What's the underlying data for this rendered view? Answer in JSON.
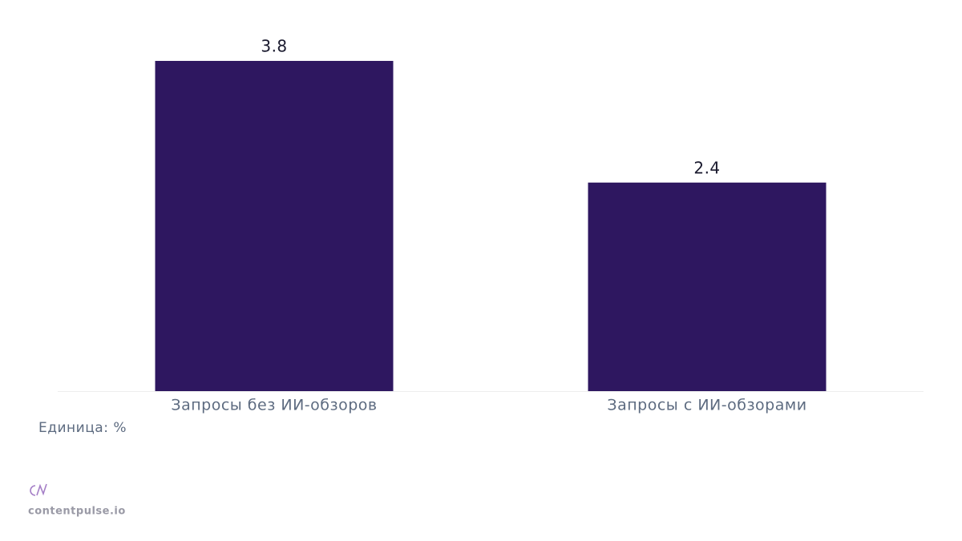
{
  "chart_data": {
    "type": "bar",
    "categories": [
      "Запросы без ИИ-обзоров",
      "Запросы с ИИ-обзорами"
    ],
    "values": [
      3.8,
      2.4
    ],
    "color": "#2e1760",
    "ylim": [
      0,
      4
    ],
    "unit_note": "Единица: %",
    "source": "contentpulse.io"
  }
}
